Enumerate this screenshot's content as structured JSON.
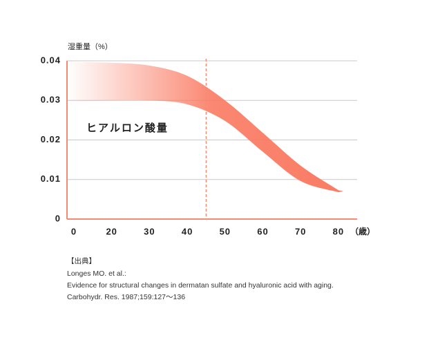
{
  "chart_data": {
    "type": "band",
    "y_label": "湿重量（%）",
    "x_unit": "（歳）",
    "categories": [
      "0",
      "20",
      "30",
      "40",
      "50",
      "60",
      "70",
      "80"
    ],
    "band": {
      "name": "ヒアルロン酸量",
      "color": "#fa7a62",
      "upper": [
        0.0397,
        0.0395,
        0.0388,
        0.0362,
        0.03,
        0.0218,
        0.0135,
        0.0073
      ],
      "lower": [
        0.0297,
        0.03,
        0.03,
        0.029,
        0.0248,
        0.017,
        0.0096,
        0.0068
      ]
    },
    "reference_x": 45,
    "ylim": [
      0,
      0.04
    ],
    "yticks": [
      0,
      0.01,
      0.02,
      0.03,
      0.04
    ],
    "grid": true,
    "axis_color": "#f58a70"
  },
  "source": {
    "heading": "【出典】",
    "lines": [
      "Longes MO. et al.:",
      "Evidence for structural changes in dermatan sulfate and hyaluronic acid with aging.",
      "Carbohydr. Res. 1987;159:127〜136"
    ]
  }
}
